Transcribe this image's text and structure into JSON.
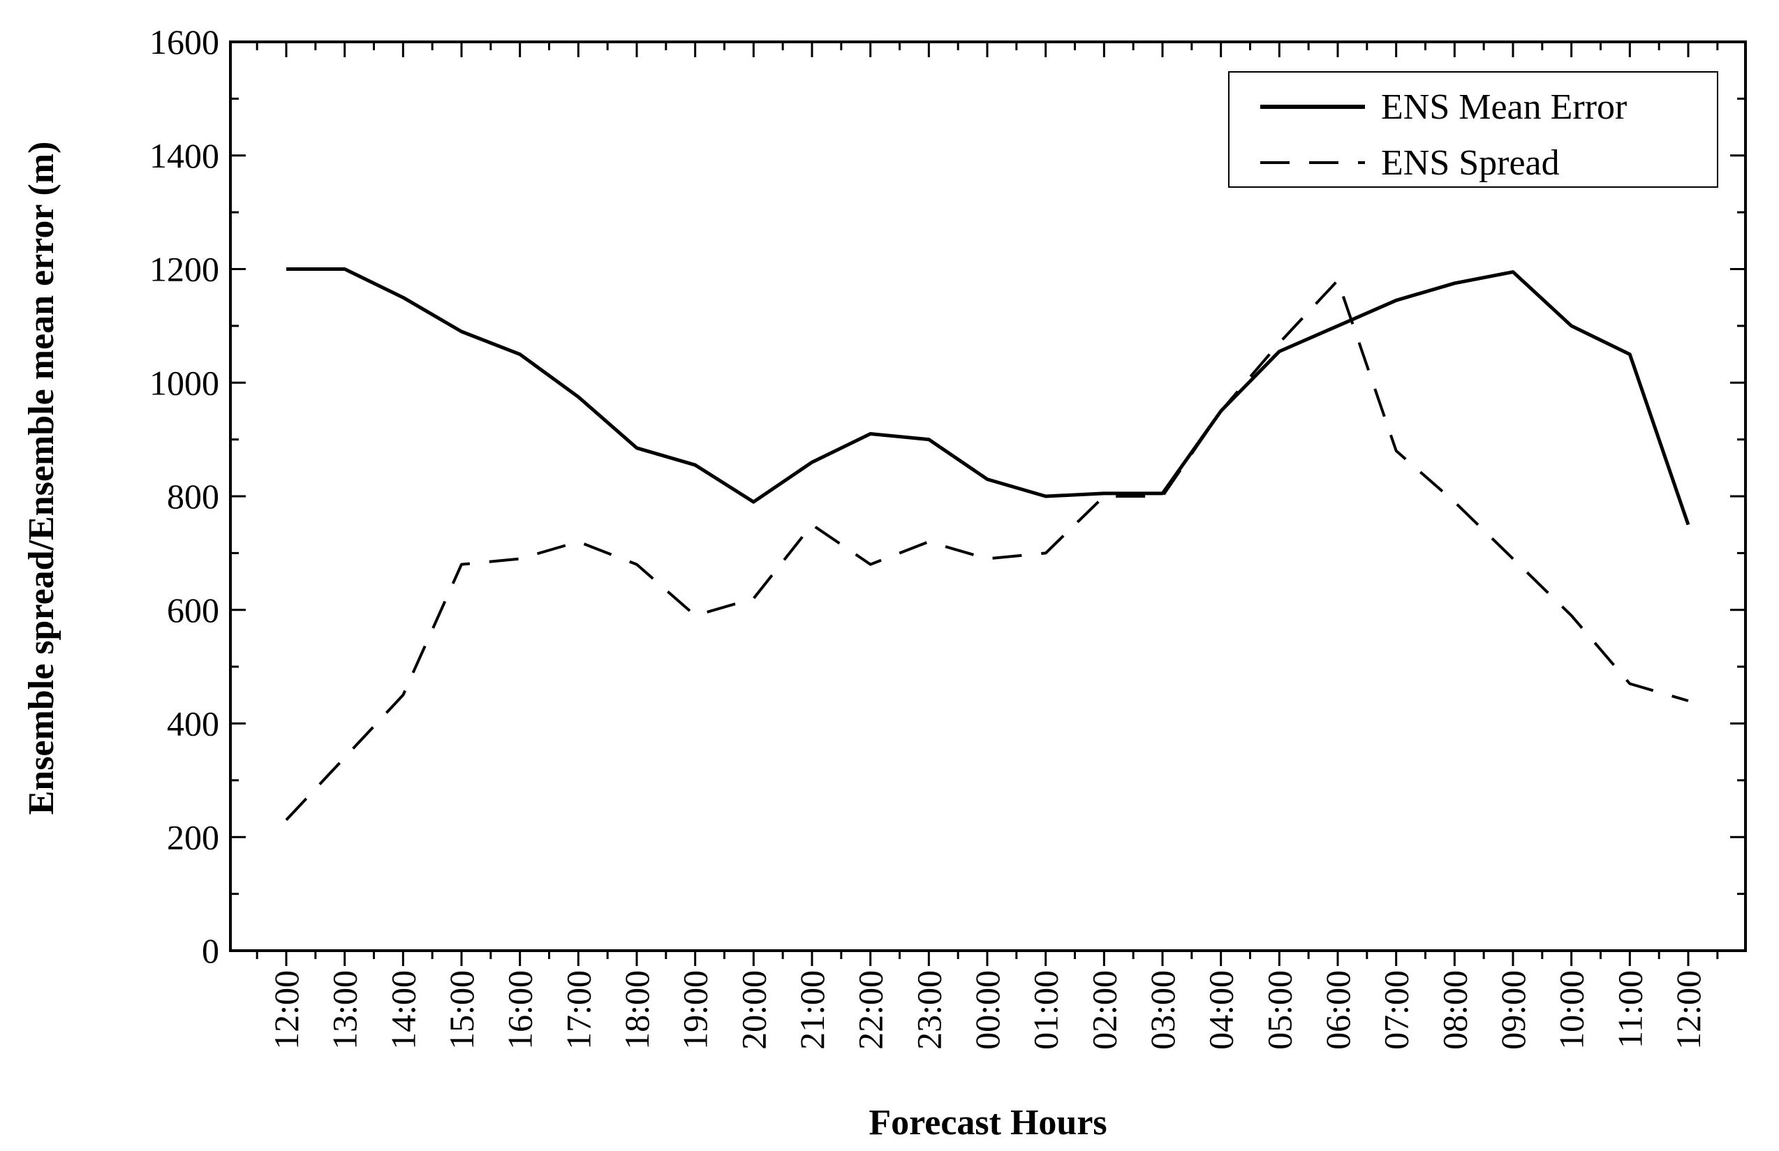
{
  "chart_data": {
    "type": "line",
    "title": "",
    "xlabel": "Forecast Hours",
    "ylabel": "Ensemble spread/Ensemble mean error (m)",
    "ylim": [
      0,
      1600
    ],
    "yticks": [
      0,
      200,
      400,
      600,
      800,
      1000,
      1200,
      1400,
      1600
    ],
    "categories": [
      "12:00",
      "13:00",
      "14:00",
      "15:00",
      "16:00",
      "17:00",
      "18:00",
      "19:00",
      "20:00",
      "21:00",
      "22:00",
      "23:00",
      "00:00",
      "01:00",
      "02:00",
      "03:00",
      "04:00",
      "05:00",
      "06:00",
      "07:00",
      "08:00",
      "09:00",
      "10:00",
      "11:00",
      "12:00"
    ],
    "grid": false,
    "legend_position": "top-right",
    "series": [
      {
        "name": "ENS Mean Error",
        "style": "solid",
        "color": "#000000",
        "values": [
          1200,
          1200,
          1150,
          1090,
          1050,
          975,
          885,
          855,
          790,
          860,
          910,
          900,
          830,
          800,
          805,
          805,
          950,
          1055,
          1100,
          1145,
          1175,
          1195,
          1100,
          1050,
          750
        ]
      },
      {
        "name": "ENS Spread",
        "style": "dashed",
        "color": "#000000",
        "values": [
          230,
          340,
          450,
          680,
          690,
          720,
          680,
          590,
          620,
          750,
          680,
          720,
          690,
          700,
          800,
          800,
          950,
          1070,
          1180,
          880,
          790,
          690,
          590,
          470,
          440
        ]
      }
    ]
  }
}
